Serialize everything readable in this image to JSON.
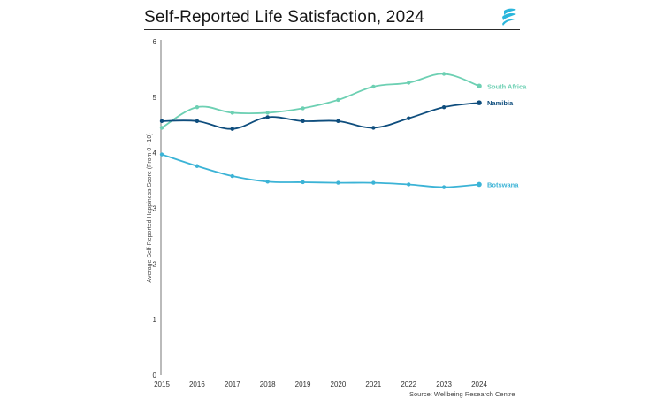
{
  "header": {
    "title": "Self-Reported Life Satisfaction, 2024"
  },
  "source": "Source: Wellbeing Research Centre",
  "colors": {
    "south_africa": "#6dd0b3",
    "namibia": "#0e4d7d",
    "botswana": "#3bb3d6",
    "logo": "#2bb6dc"
  },
  "chart_data": {
    "type": "line",
    "title": "Self-Reported Life Satisfaction, 2024",
    "xlabel": "",
    "ylabel": "Average Self-Reported Happiness Score (From 0 - 10)",
    "x": [
      "2015",
      "2016",
      "2017",
      "2018",
      "2019",
      "2020",
      "2021",
      "2022",
      "2023",
      "2024"
    ],
    "ylim": [
      0,
      6
    ],
    "yticks": [
      "0",
      "1",
      "2",
      "3",
      "4",
      "5",
      "6"
    ],
    "grid": false,
    "series": [
      {
        "name": "South Africa",
        "color": "#6dd0b3",
        "values": [
          4.45,
          4.82,
          4.72,
          4.72,
          4.8,
          4.95,
          5.19,
          5.26,
          5.42,
          5.2
        ]
      },
      {
        "name": "Namibia",
        "color": "#0e4d7d",
        "values": [
          4.57,
          4.57,
          4.43,
          4.64,
          4.57,
          4.57,
          4.45,
          4.62,
          4.82,
          4.9
        ]
      },
      {
        "name": "Botswana",
        "color": "#3bb3d6",
        "values": [
          3.97,
          3.76,
          3.58,
          3.48,
          3.47,
          3.46,
          3.46,
          3.43,
          3.38,
          3.43
        ]
      }
    ]
  }
}
